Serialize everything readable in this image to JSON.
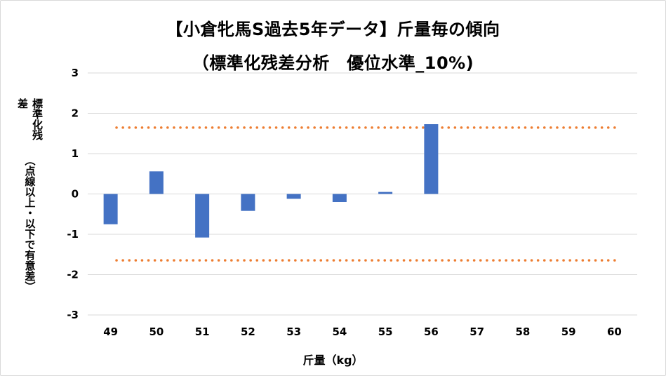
{
  "chart_data": {
    "type": "bar",
    "title_line1": "【小倉牝馬S過去5年データ】斤量毎の傾向",
    "title_line2": "（標準化残差分析　優位水準_10%)",
    "ylabel_line1": "標準化残差",
    "ylabel_line2": "（点線以上・以下で有意差）",
    "xlabel": "斤量（kg）",
    "categories": [
      "49",
      "50",
      "51",
      "52",
      "53",
      "54",
      "55",
      "56",
      "57",
      "58",
      "59",
      "60"
    ],
    "values": [
      -0.75,
      0.56,
      -1.08,
      -0.42,
      -0.12,
      -0.2,
      0.05,
      1.73,
      null,
      null,
      null,
      null
    ],
    "ylim": [
      -3,
      3
    ],
    "yticks": [
      "3",
      "2",
      "1",
      "0",
      "-1",
      "-2",
      "-3"
    ],
    "threshold_upper": 1.645,
    "threshold_lower": -1.645,
    "grid": true,
    "bar_color": "#4472c4",
    "threshold_color": "#ed7d31",
    "grid_color": "#d9d9d9"
  }
}
